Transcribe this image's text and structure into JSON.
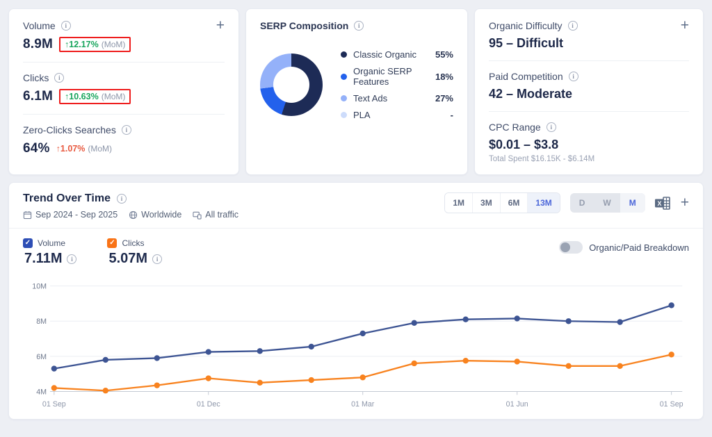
{
  "metrics_card": {
    "add_label": "+",
    "volume": {
      "label": "Volume",
      "value": "8.9M",
      "change": "↑12.17%",
      "mom": "(MoM)"
    },
    "clicks": {
      "label": "Clicks",
      "value": "6.1M",
      "change": "↑10.63%",
      "mom": "(MoM)"
    },
    "zero_clicks": {
      "label": "Zero-Clicks Searches",
      "value": "64%",
      "change": "↑1.07%",
      "mom": "(MoM)"
    }
  },
  "serp_card": {
    "title": "SERP Composition",
    "legend": [
      {
        "label": "Classic Organic",
        "value": "55%",
        "color": "#1d2b56",
        "pct": 55
      },
      {
        "label": "Organic SERP Features",
        "value": "18%",
        "color": "#2361ec",
        "pct": 18
      },
      {
        "label": "Text Ads",
        "value": "27%",
        "color": "#94b1f9",
        "pct": 27
      },
      {
        "label": "PLA",
        "value": "-",
        "color": "#cddcfb",
        "pct": 0
      }
    ]
  },
  "difficulty_card": {
    "add_label": "+",
    "organic": {
      "label": "Organic Difficulty",
      "value": "95 – Difficult"
    },
    "paid": {
      "label": "Paid Competition",
      "value": "42 – Moderate"
    },
    "cpc": {
      "label": "CPC Range",
      "value": "$0.01 – $3.8",
      "subtext": "Total Spent $16.15K - $6.14M"
    }
  },
  "trend": {
    "title": "Trend Over Time",
    "date_range": "Sep 2024 - Sep 2025",
    "location": "Worldwide",
    "traffic": "All traffic",
    "add_label": "+",
    "ranges": [
      {
        "label": "1M"
      },
      {
        "label": "3M"
      },
      {
        "label": "6M"
      },
      {
        "label": "13M"
      }
    ],
    "active_range": "13M",
    "granularities": [
      {
        "label": "D"
      },
      {
        "label": "W"
      },
      {
        "label": "M"
      }
    ],
    "active_granularity": "M",
    "series_legend": [
      {
        "label": "Volume",
        "value": "7.11M",
        "color": "#2d4eb5",
        "checked": true
      },
      {
        "label": "Clicks",
        "value": "5.07M",
        "color": "#f97316",
        "checked": true
      }
    ],
    "breakdown_label": "Organic/Paid Breakdown"
  },
  "chart_data": {
    "type": "line",
    "title": "Trend Over Time",
    "x": [
      "Sep 2024",
      "Oct 2024",
      "Nov 2024",
      "Dec 2024",
      "Jan 2025",
      "Feb 2025",
      "Mar 2025",
      "Apr 2025",
      "May 2025",
      "Jun 2025",
      "Jul 2025",
      "Aug 2025",
      "Sep 2025"
    ],
    "series": [
      {
        "name": "Volume",
        "color": "#3d5493",
        "values": [
          5.3,
          5.8,
          5.9,
          6.25,
          6.3,
          6.55,
          7.3,
          7.9,
          8.1,
          8.15,
          8.0,
          7.95,
          8.9
        ]
      },
      {
        "name": "Clicks",
        "color": "#f8821e",
        "values": [
          4.2,
          4.05,
          4.35,
          4.75,
          4.5,
          4.65,
          4.8,
          5.6,
          5.75,
          5.7,
          5.45,
          5.45,
          6.1
        ]
      }
    ],
    "ylim": [
      4,
      10
    ],
    "unit": "M",
    "y_ticks": [
      "10M",
      "8M",
      "6M",
      "4M"
    ],
    "x_ticks": [
      "01 Sep",
      "01 Dec",
      "01 Mar",
      "01 Jun",
      "01 Sep"
    ],
    "x_tick_idx": [
      0,
      3,
      6,
      9,
      12
    ],
    "grid": "horizontal",
    "legend_position": "top-left"
  }
}
